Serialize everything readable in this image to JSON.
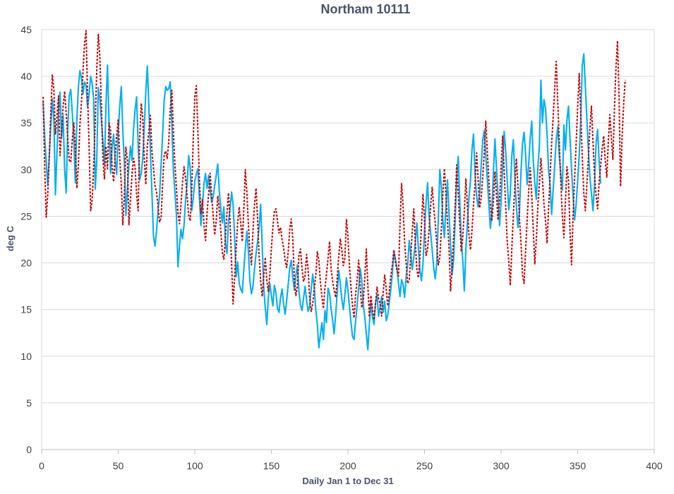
{
  "chart_data": {
    "type": "line",
    "title": "Northam 10111",
    "xlabel": "Daily Jan 1 to Dec 31",
    "ylabel": "deg C",
    "xlim": [
      0,
      400
    ],
    "ylim": [
      0,
      45
    ],
    "x_ticks": [
      0,
      50,
      100,
      150,
      200,
      250,
      300,
      350,
      400
    ],
    "y_ticks": [
      0,
      5,
      10,
      15,
      20,
      25,
      30,
      35,
      40,
      45
    ],
    "grid": "horizontal",
    "legend": "none",
    "series": [
      {
        "color": "#00b0f0",
        "style": "solid",
        "x_start": 1,
        "x_step": 1,
        "values": [
          37.2,
          33.5,
          30.8,
          28.3,
          31.5,
          34.8,
          37.6,
          35.2,
          27.3,
          31.8,
          36.0,
          38.3,
          33.4,
          35.8,
          30.1,
          27.5,
          34.2,
          37.9,
          38.6,
          36.1,
          33.2,
          28.6,
          35.4,
          38.9,
          40.6,
          39.8,
          38.1,
          39.4,
          39.0,
          36.7,
          38.1,
          40.0,
          39.2,
          37.5,
          27.9,
          31.0,
          38.8,
          37.6,
          35.4,
          33.1,
          30.5,
          36.9,
          41.2,
          35.0,
          29.6,
          32.4,
          33.8,
          31.0,
          29.5,
          34.1,
          36.8,
          38.9,
          34.2,
          30.7,
          25.1,
          28.0,
          30.6,
          32.5,
          31.0,
          34.3,
          36.4,
          37.8,
          32.7,
          28.9,
          29.6,
          31.2,
          34.5,
          38.3,
          41.1,
          36.8,
          32.0,
          27.6,
          22.9,
          21.8,
          23.4,
          25.6,
          27.2,
          30.5,
          33.8,
          37.4,
          38.9,
          38.5,
          38.7,
          39.4,
          34.8,
          30.0,
          27.6,
          25.2,
          19.6,
          21.8,
          23.6,
          22.6,
          24.1,
          26.8,
          28.5,
          31.5,
          30.2,
          25.6,
          26.9,
          28.8,
          29.5,
          30.1,
          27.0,
          24.0,
          26.1,
          28.5,
          29.6,
          28.0,
          29.4,
          27.8,
          26.5,
          27.1,
          28.3,
          29.4,
          30.6,
          27.7,
          25.8,
          24.3,
          26.0,
          22.1,
          21.0,
          24.5,
          25.7,
          27.6,
          26.3,
          22.8,
          18.5,
          20.1,
          17.8,
          17.2,
          16.8,
          19.3,
          21.5,
          23.4,
          21.2,
          18.0,
          16.7,
          17.5,
          19.4,
          21.0,
          22.3,
          23.8,
          26.3,
          22.0,
          17.4,
          15.2,
          13.4,
          16.2,
          17.8,
          16.5,
          15.4,
          17.6,
          16.8,
          15.1,
          14.7,
          16.3,
          17.2,
          15.6,
          14.5,
          16.0,
          17.7,
          19.5,
          20.3,
          18.4,
          17.1,
          18.6,
          19.8,
          16.9,
          15.5,
          14.9,
          16.2,
          17.5,
          16.0,
          14.8,
          15.3,
          17.2,
          18.8,
          17.4,
          15.0,
          13.5,
          10.9,
          12.3,
          13.6,
          11.8,
          14.9,
          13.6,
          17.3,
          16.7,
          15.1,
          13.9,
          12.4,
          14.5,
          16.8,
          19.2,
          17.8,
          16.1,
          15.0,
          16.6,
          18.4,
          17.1,
          15.3,
          13.6,
          12.1,
          11.8,
          13.7,
          15.5,
          17.3,
          19.4,
          18.2,
          15.5,
          14.2,
          12.4,
          10.7,
          13.5,
          15.8,
          14.2,
          13.4,
          15.7,
          16.6,
          14.3,
          15.2,
          16.4,
          14.7,
          15.9,
          13.8,
          14.4,
          15.7,
          17.2,
          18.9,
          21.3,
          20.4,
          19.5,
          17.8,
          16.4,
          18.2,
          17.7,
          16.3,
          18.5,
          19.8,
          22.4,
          21.0,
          19.3,
          20.6,
          22.2,
          24.3,
          21.6,
          19.2,
          18.1,
          19.9,
          23.5,
          26.4,
          28.6,
          25.0,
          23.2,
          21.4,
          19.5,
          18.3,
          20.1,
          24.6,
          30.0,
          28.1,
          24.5,
          22.7,
          26.1,
          28.9,
          25.3,
          22.0,
          18.7,
          20.3,
          24.5,
          29.3,
          31.4,
          26.8,
          22.5,
          20.2,
          17.0,
          21.5,
          24.3,
          27.0,
          28.8,
          32.2,
          33.8,
          29.5,
          27.2,
          26.0,
          27.5,
          30.4,
          33.1,
          34.2,
          31.5,
          29.0,
          26.3,
          23.7,
          25.5,
          29.8,
          33.3,
          30.1,
          27.2,
          24.0,
          26.5,
          30.3,
          34.1,
          32.0,
          28.9,
          25.7,
          27.4,
          31.5,
          33.2,
          29.1,
          26.0,
          23.8,
          25.5,
          29.8,
          32.8,
          34.0,
          31.6,
          28.4,
          30.5,
          33.4,
          35.2,
          31.0,
          28.6,
          26.8,
          30.2,
          32.5,
          39.6,
          35.0,
          37.5,
          36.6,
          33.8,
          30.0,
          28.3,
          25.2,
          27.8,
          30.5,
          33.2,
          34.6,
          31.5,
          29.4,
          27.8,
          34.8,
          32.1,
          35.3,
          36.8,
          33.4,
          30.1,
          27.2,
          24.6,
          26.3,
          28.8,
          31.5,
          35.2,
          41.2,
          42.4,
          39.0,
          35.5,
          32.1,
          29.2,
          27.4,
          25.6,
          28.4,
          32.8,
          34.3,
          31.0,
          28.5
        ]
      },
      {
        "color": "#c00000",
        "style": "dashed",
        "x_start": 1,
        "x_step": 1,
        "values": [
          37.8,
          30.2,
          24.9,
          27.4,
          31.5,
          36.2,
          40.2,
          38.5,
          33.8,
          35.6,
          37.9,
          31.5,
          34.0,
          36.8,
          38.4,
          36.1,
          33.5,
          31.0,
          30.8,
          33.2,
          35.0,
          32.4,
          28.0,
          30.6,
          34.8,
          37.2,
          40.6,
          43.5,
          44.9,
          38.0,
          32.4,
          25.6,
          26.8,
          30.4,
          35.2,
          40.7,
          44.5,
          42.1,
          36.8,
          31.2,
          29.0,
          32.5,
          30.1,
          35.0,
          34.2,
          30.3,
          28.7,
          31.5,
          33.6,
          35.4,
          31.2,
          28.5,
          24.1,
          27.3,
          32.4,
          31.0,
          24.1,
          26.8,
          29.4,
          31.2,
          30.2,
          27.4,
          25.6,
          33.2,
          37.1,
          35.6,
          31.3,
          28.4,
          32.5,
          34.1,
          35.8,
          32.0,
          30.2,
          28.3,
          27.6,
          26.1,
          24.4,
          24.8,
          28.5,
          31.6,
          32.0,
          31.2,
          33.0,
          36.5,
          38.5,
          34.2,
          30.5,
          28.1,
          25.4,
          24.2,
          26.3,
          28.7,
          30.3,
          29.1,
          27.2,
          25.1,
          24.5,
          27.8,
          33.4,
          37.8,
          39.0,
          34.2,
          29.0,
          25.3,
          26.8,
          24.1,
          22.4,
          25.3,
          27.4,
          29.6,
          27.3,
          25.1,
          23.0,
          24.5,
          27.2,
          25.7,
          23.4,
          21.1,
          20.4,
          22.8,
          25.3,
          27.5,
          24.6,
          20.1,
          15.6,
          18.4,
          21.5,
          24.3,
          26.0,
          24.2,
          22.3,
          25.7,
          30.0,
          27.6,
          24.1,
          21.2,
          19.8,
          23.5,
          26.3,
          28.0,
          24.7,
          20.8,
          18.1,
          16.4,
          18.5,
          20.6,
          18.2,
          16.9,
          18.7,
          21.6,
          23.8,
          25.6,
          25.8,
          24.5,
          23.2,
          23.8,
          22.5,
          21.6,
          20.3,
          19.5,
          21.2,
          23.6,
          24.7,
          22.6,
          18.3,
          16.5,
          17.6,
          20.8,
          21.5,
          19.4,
          18.0,
          18.6,
          20.9,
          19.3,
          16.3,
          14.8,
          15.6,
          17.2,
          18.6,
          21.2,
          20.3,
          18.0,
          16.4,
          15.1,
          17.3,
          18.8,
          20.5,
          22.3,
          19.4,
          18.0,
          17.1,
          16.3,
          18.4,
          20.7,
          22.6,
          21.4,
          19.7,
          20.5,
          24.7,
          22.8,
          19.6,
          17.3,
          15.4,
          14.1,
          16.6,
          18.2,
          20.3,
          17.5,
          15.2,
          16.0,
          18.4,
          21.5,
          17.6,
          14.2,
          16.5,
          15.1,
          13.9,
          15.6,
          17.4,
          16.2,
          15.6,
          14.3,
          16.8,
          18.7,
          17.2,
          15.4,
          16.9,
          18.6,
          19.8,
          21.4,
          20.1,
          19.2,
          18.6,
          24.2,
          28.5,
          26.1,
          22.3,
          20.0,
          17.8,
          18.2,
          20.6,
          23.4,
          25.8,
          22.1,
          19.3,
          18.4,
          20.6,
          24.0,
          27.4,
          24.6,
          20.8,
          21.5,
          23.6,
          26.2,
          28.1,
          26.0,
          24.3,
          22.1,
          19.8,
          20.6,
          23.6,
          27.5,
          30.1,
          27.2,
          24.4,
          21.6,
          17.0,
          19.5,
          22.8,
          26.1,
          30.5,
          27.4,
          24.2,
          21.2,
          22.8,
          25.6,
          29.0,
          26.2,
          23.0,
          21.4,
          23.5,
          26.3,
          28.5,
          31.8,
          29.0,
          25.9,
          27.0,
          29.1,
          31.8,
          35.2,
          32.0,
          28.9,
          26.3,
          24.5,
          26.6,
          29.8,
          27.2,
          24.6,
          26.8,
          30.2,
          33.6,
          29.9,
          26.1,
          22.3,
          20.2,
          17.6,
          21.5,
          25.1,
          28.3,
          31.2,
          28.3,
          24.7,
          22.2,
          18.7,
          17.8,
          21.3,
          24.6,
          27.7,
          30.2,
          27.3,
          23.6,
          19.9,
          22.5,
          26.1,
          28.5,
          31.2,
          29.0,
          26.3,
          24.5,
          22.1,
          25.7,
          29.3,
          32.8,
          35.6,
          38.7,
          41.6,
          37.3,
          33.0,
          28.6,
          25.1,
          22.7,
          26.5,
          30.3,
          28.8,
          23.4,
          19.8,
          25.2,
          29.0,
          32.8,
          36.7,
          40.3,
          36.2,
          31.4,
          27.5,
          25.6,
          28.4,
          31.2,
          34.5,
          36.8,
          33.0,
          29.5,
          27.3,
          25.8,
          28.6,
          30.4,
          32.2,
          33.6,
          31.0,
          29.2,
          33.0,
          35.9,
          33.4,
          31.1,
          36.4,
          40.9,
          43.8,
          38.1,
          28.2,
          33.5,
          36.9,
          39.6
        ]
      }
    ]
  }
}
